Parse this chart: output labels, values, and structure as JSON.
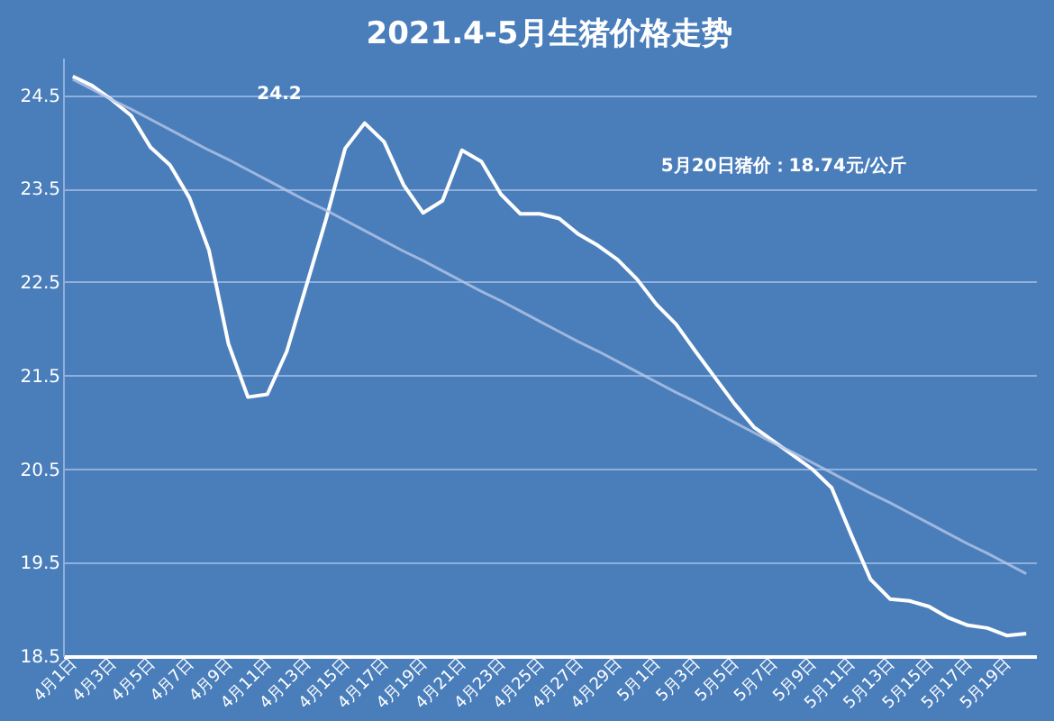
{
  "chart_data": {
    "type": "line",
    "title": "2021.4-5月生猪价格走势",
    "categories": [
      "4月1日",
      null,
      "4月3日",
      null,
      "4月5日",
      null,
      "4月7日",
      null,
      "4月9日",
      null,
      "4月11日",
      null,
      "4月13日",
      null,
      "4月15日",
      null,
      "4月17日",
      null,
      "4月19日",
      null,
      "4月21日",
      null,
      "4月23日",
      null,
      "4月25日",
      null,
      "4月27日",
      null,
      "4月29日",
      null,
      "5月1日",
      null,
      "5月3日",
      null,
      "5月5日",
      null,
      "5月7日",
      null,
      "5月9日",
      null,
      "5月11日",
      null,
      "5月13日",
      null,
      "5月15日",
      null,
      "5月17日",
      null,
      "5月19日",
      null
    ],
    "series": [
      {
        "type": "line",
        "color": "#ffffff",
        "values": [
          24.7,
          24.6,
          24.45,
          24.28,
          23.94,
          23.75,
          23.4,
          22.84,
          21.84,
          21.27,
          21.3,
          21.76,
          22.46,
          23.16,
          23.93,
          24.2,
          24.0,
          23.54,
          23.24,
          23.37,
          23.91,
          23.79,
          23.44,
          23.23,
          23.23,
          23.18,
          23.01,
          22.89,
          22.74,
          22.53,
          22.26,
          22.05,
          21.76,
          21.48,
          21.2,
          20.95,
          20.8,
          20.65,
          20.5,
          20.3,
          19.8,
          19.32,
          19.11,
          19.09,
          19.03,
          18.91,
          18.83,
          18.8,
          18.72,
          18.74
        ]
      },
      {
        "type": "line",
        "color": "#b4c6e7",
        "values": [
          24.67,
          24.56,
          24.45,
          24.35,
          24.24,
          24.13,
          24.02,
          23.91,
          23.81,
          23.7,
          23.59,
          23.48,
          23.37,
          23.27,
          23.16,
          23.05,
          22.94,
          22.83,
          22.73,
          22.62,
          22.51,
          22.4,
          22.3,
          22.19,
          22.08,
          21.97,
          21.86,
          21.76,
          21.65,
          21.54,
          21.43,
          21.32,
          21.22,
          21.11,
          21.0,
          20.89,
          20.78,
          20.68,
          20.57,
          20.46,
          20.35,
          20.24,
          20.14,
          20.03,
          19.92,
          19.81,
          19.7,
          19.6,
          19.49,
          19.38
        ]
      }
    ],
    "ylim": [
      18.5,
      24.9
    ],
    "yticks": [
      18.5,
      19.5,
      20.5,
      21.5,
      22.5,
      23.5,
      24.5
    ],
    "grid": "y",
    "annotations": [
      "24.2",
      "5月20日猪价：18.74元/公斤"
    ]
  }
}
